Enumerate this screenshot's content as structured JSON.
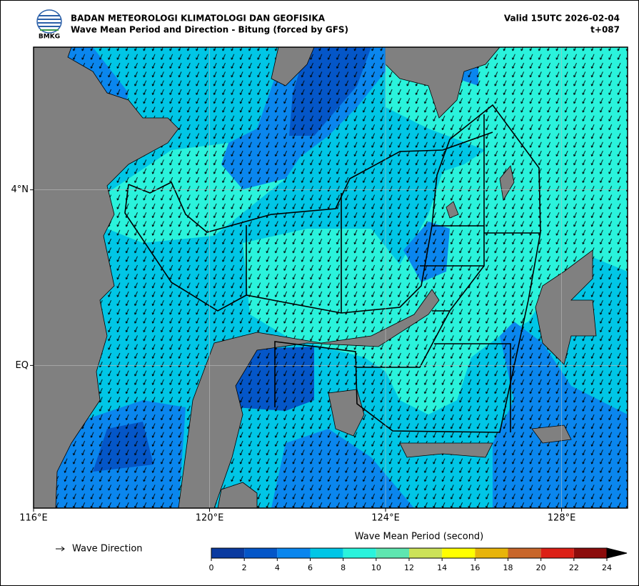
{
  "header": {
    "agency": "BADAN METEOROLOGI KLIMATOLOGI DAN GEOFISIKA",
    "title": "Wave Mean Period and Direction - Bitung (forced by GFS)",
    "valid": "Valid 15UTC 2026-02-04",
    "lead": "t+087",
    "logo_text": "BMKG"
  },
  "map": {
    "lon_range": [
      116,
      129.5
    ],
    "lat_range": [
      -3.25,
      7.25
    ],
    "lon_ticks": [
      {
        "value": 116,
        "label": "116°E"
      },
      {
        "value": 120,
        "label": "120°E"
      },
      {
        "value": 124,
        "label": "124°E"
      },
      {
        "value": 128,
        "label": "128°E"
      }
    ],
    "lat_ticks": [
      {
        "value": 4,
        "label": "4°N"
      },
      {
        "value": 0,
        "label": "EQ"
      }
    ]
  },
  "legend": {
    "label": "Wave Direction"
  },
  "colorbar": {
    "title": "Wave Mean Period (second)",
    "levels": [
      0,
      2,
      4,
      6,
      8,
      10,
      12,
      14,
      16,
      18,
      20,
      22,
      24
    ],
    "colors": [
      "#0a3aa0",
      "#0456c8",
      "#0a86ee",
      "#00c6e6",
      "#2af3dc",
      "#5ee6b0",
      "#cce258",
      "#ffff00",
      "#e8b40a",
      "#c8662a",
      "#dc2016",
      "#8c0c0c"
    ],
    "extend_color": "#000000"
  }
}
